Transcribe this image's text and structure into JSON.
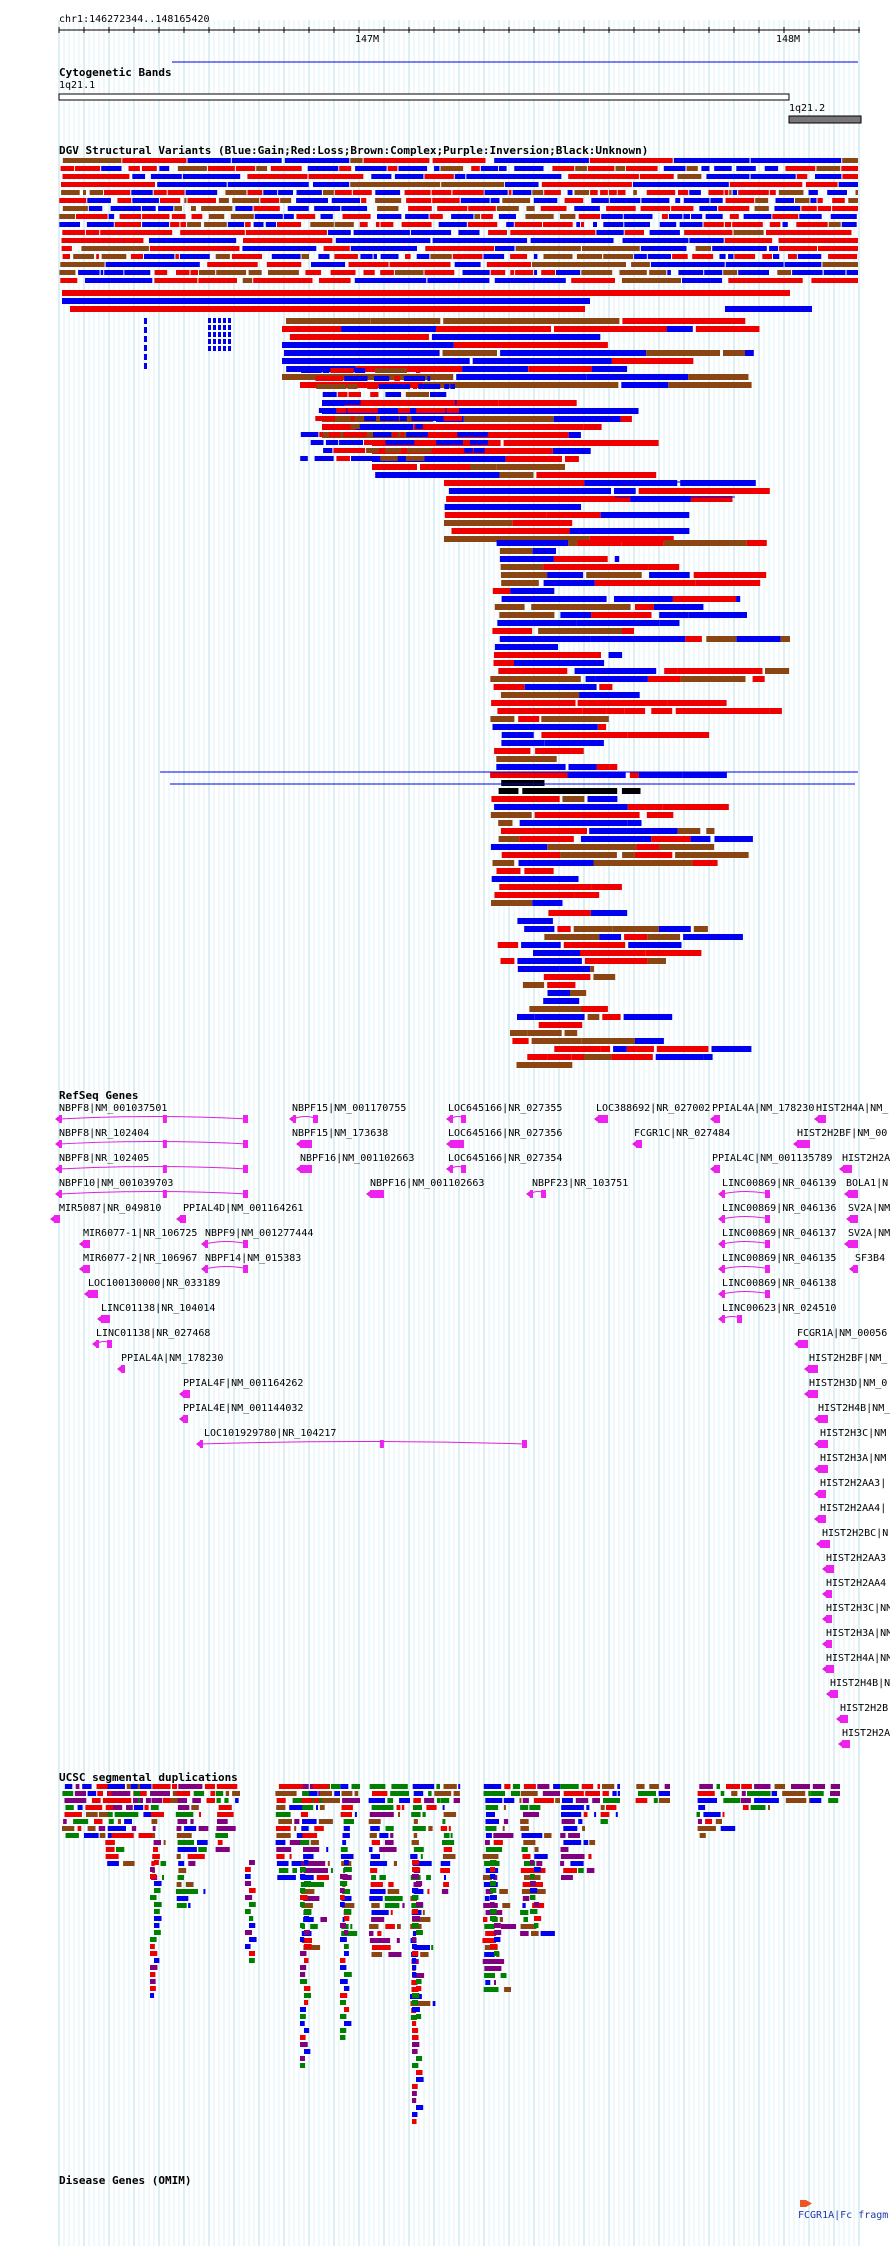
{
  "ruler": {
    "coords": "chr1:146272344..148165420",
    "ticks": [
      "147M",
      "148M"
    ]
  },
  "tracks": {
    "cytobands": {
      "title": "Cytogenetic Bands",
      "bands": [
        "1q21.1",
        "1q21.2"
      ]
    },
    "dgv": {
      "title": "DGV Structural Variants (Blue:Gain;Red:Loss;Brown:Complex;Purple:Inversion;Black:Unknown)",
      "colors": {
        "gain": "#0000ee",
        "loss": "#ee0000",
        "complex": "#8b4513",
        "inversion": "#800080",
        "unknown": "#000000"
      }
    },
    "refseq": {
      "title": "RefSeq Genes",
      "genes": [
        "NBPF8|NM_001037501",
        "NBPF8|NR_102404",
        "NBPF8|NR_102405",
        "NBPF10|NM_001039703",
        "MIR5087|NR_049810",
        "PPIAL4D|NM_001164261",
        "MIR6077-1|NR_106725",
        "NBPF9|NM_001277444",
        "MIR6077-2|NR_106967",
        "NBPF14|NM_015383",
        "LOC100130000|NR_033189",
        "LINC01138|NR_104014",
        "LINC01138|NR_027468",
        "PPIAL4A|NM_178230",
        "PPIAL4F|NM_001164262",
        "PPIAL4E|NM_001144032",
        "LOC101929780|NR_104217",
        "NBPF15|NM_001170755",
        "NBPF15|NM_173638",
        "NBPF16|NM_001102663",
        "NBPF16|NM_001102663",
        "LOC645166|NR_027355",
        "LOC645166|NR_027356",
        "LOC645166|NR_027354",
        "NBPF23|NR_103751",
        "LOC388692|NR_027002",
        "FCGR1C|NR_027484",
        "PPIAL4A|NM_178230",
        "PPIAL4C|NM_001135789",
        "LINC00869|NR_046139",
        "LINC00869|NR_046136",
        "LINC00869|NR_046137",
        "LINC00869|NR_046135",
        "LINC00869|NR_046138",
        "LINC00623|NR_024510",
        "HIST2H4A|NM_",
        "HIST2H2BF|NM_00",
        "HIST2H2A",
        "BOLA1|N",
        "SV2A|NM",
        "SV2A|NM",
        "SF3B4",
        "FCGR1A|NM_00056",
        "HIST2H2BF|NM_",
        "HIST2H3D|NM_0",
        "HIST2H4B|NM_",
        "HIST2H3C|NM",
        "HIST2H3A|NM",
        "HIST2H2AA3|",
        "HIST2H2AA4|",
        "HIST2H2BC|N",
        "HIST2H2AA3",
        "HIST2H2AA4",
        "HIST2H3C|NM",
        "HIST2H3A|NM",
        "HIST2H4A|NM",
        "HIST2H4B|NM",
        "HIST2H2B",
        "HIST2H2A"
      ]
    },
    "segdups": {
      "title": "UCSC segmental duplications",
      "colors": {
        "red": "#ee0000",
        "purple": "#800080",
        "blue": "#0000ee",
        "green": "#008000",
        "brown": "#8b4513"
      }
    },
    "omim": {
      "title": "Disease Genes (OMIM)",
      "genes": [
        "FCGR1A|Fc fragm"
      ]
    }
  }
}
